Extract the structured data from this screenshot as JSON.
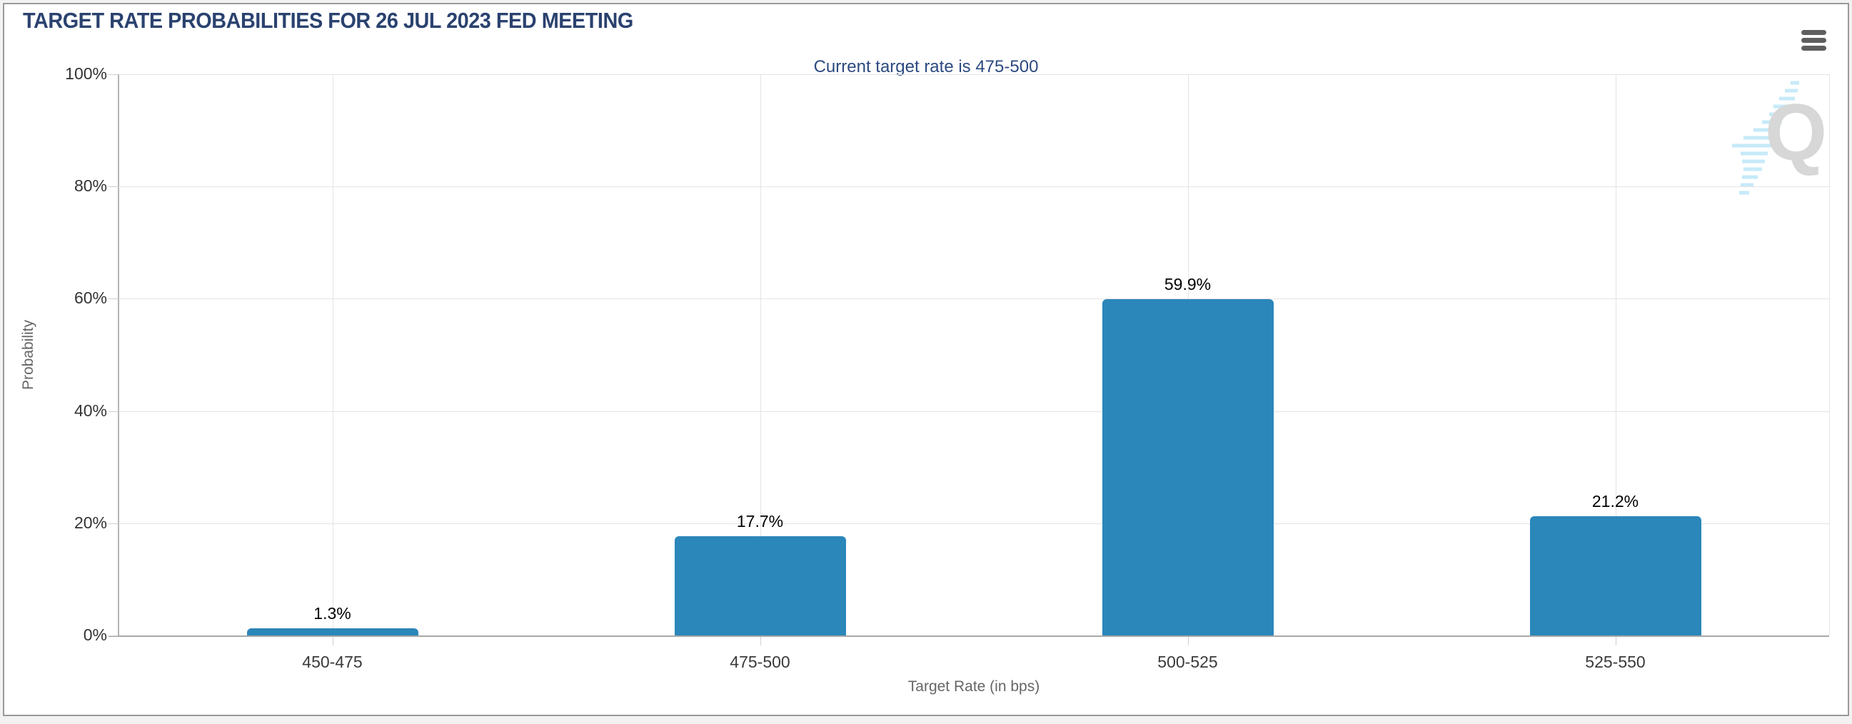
{
  "header": {
    "title": "TARGET RATE PROBABILITIES FOR 26 JUL 2023 FED MEETING"
  },
  "icons": {
    "menu": "hamburger-icon",
    "watermark": "q-logo-watermark"
  },
  "watermark_letter": "Q",
  "colors": {
    "title_text": "#2a426f",
    "subtitle_text": "#2c4a80",
    "bar": "#2b86ba",
    "grid_line": "#e4e4e4",
    "axis_line": "#a8a8a8",
    "tick_label": "#333333",
    "category_label": "#3a3a3a",
    "axis_title": "#666666",
    "frame_border": "#9a9a9a",
    "page_background": "#f2f2f2",
    "watermark_gray": "#d7d7d7",
    "watermark_blue": "#c6eaf8"
  },
  "chart_data": {
    "type": "bar",
    "title": "TARGET RATE PROBABILITIES FOR 26 JUL 2023 FED MEETING",
    "subtitle": "Current target rate is 475-500",
    "categories": [
      "450-475",
      "475-500",
      "500-525",
      "525-550"
    ],
    "values": [
      1.3,
      17.7,
      59.9,
      21.2
    ],
    "value_labels": [
      "1.3%",
      "17.7%",
      "59.9%",
      "21.2%"
    ],
    "xlabel": "Target Rate (in bps)",
    "ylabel": "Probability",
    "ylim": [
      0,
      100
    ],
    "yticks": [
      0,
      20,
      40,
      60,
      80,
      100
    ],
    "ytick_labels": [
      "0%",
      "20%",
      "40%",
      "60%",
      "80%",
      "100%"
    ],
    "grid": true,
    "legend": false
  }
}
